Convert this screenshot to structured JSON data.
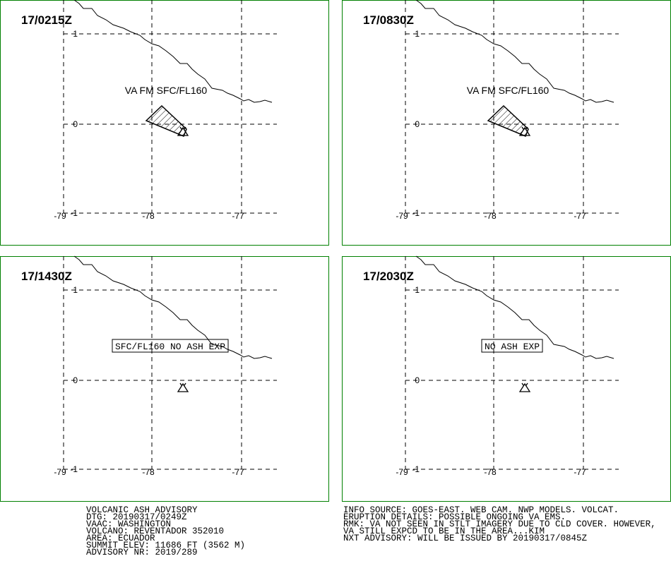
{
  "panels": [
    {
      "time": "17/0215Z",
      "annotation": "VA FM SFC/FL160",
      "lat_labels": [
        "1",
        "0",
        "-1"
      ],
      "lon_labels": [
        "-79",
        "-78",
        "-77"
      ]
    },
    {
      "time": "17/0830Z",
      "annotation": "VA FM SFC/FL160",
      "lat_labels": [
        "1",
        "0",
        "-1"
      ],
      "lon_labels": [
        "-79",
        "-78",
        "-77"
      ]
    },
    {
      "time": "17/1430Z",
      "annotation": "SFC/FL160 NO ASH EXP",
      "lat_labels": [
        "1",
        "0",
        "-1"
      ],
      "lon_labels": [
        "-79",
        "-78",
        "-77"
      ]
    },
    {
      "time": "17/2030Z",
      "annotation": "NO ASH EXP",
      "lat_labels": [
        "1",
        "0",
        "-1"
      ],
      "lon_labels": [
        "-79",
        "-78",
        "-77"
      ]
    }
  ],
  "advisory_left": [
    "VOLCANIC ASH ADVISORY",
    "DTG: 20190317/0249Z",
    "VAAC: WASHINGTON",
    "VOLCANO: REVENTADOR 352010",
    "AREA: ECUADOR",
    "SUMMIT ELEV: 11686 FT (3562 M)",
    "ADVISORY NR: 2019/289"
  ],
  "advisory_right": [
    "INFO SOURCE: GOES-EAST. WEB CAM. NWP MODELS. VOLCAT.",
    "ERUPTION DETAILS: POSSIBLE ONGOING VA EMS.",
    "RMK: VA NOT SEEN IN STLT IMAGERY DUE TO CLD COVER. HOWEVER,",
    "VA STILL EXPCD TO BE IN THE AREA...KIM",
    "NXT ADVISORY: WILL BE ISSUED BY 20190317/0845Z"
  ]
}
